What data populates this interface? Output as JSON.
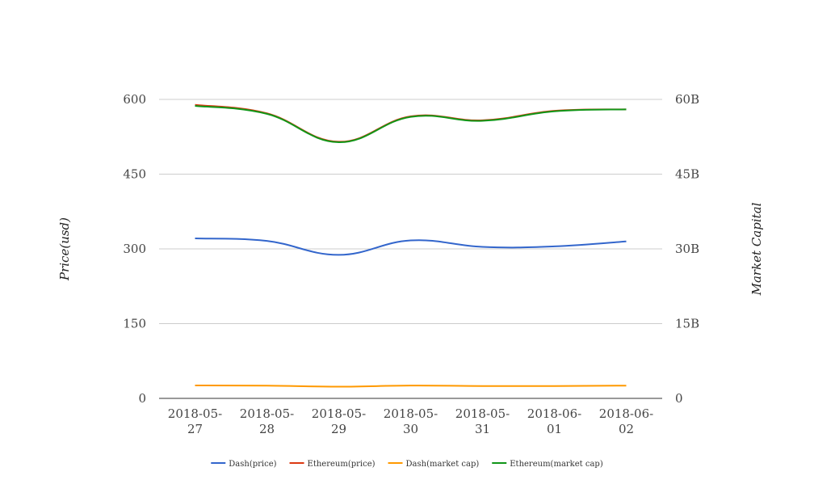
{
  "chart_data": {
    "type": "line",
    "categories": [
      "2018-05-27",
      "2018-05-28",
      "2018-05-29",
      "2018-05-30",
      "2018-05-31",
      "2018-06-01",
      "2018-06-02"
    ],
    "x_tick_labels": [
      [
        "2018-05-",
        "27"
      ],
      [
        "2018-05-",
        "28"
      ],
      [
        "2018-05-",
        "29"
      ],
      [
        "2018-05-",
        "30"
      ],
      [
        "2018-05-",
        "31"
      ],
      [
        "2018-06-",
        "01"
      ],
      [
        "2018-06-",
        "02"
      ]
    ],
    "ylabel_left": "Price(usd)",
    "ylabel_right": "Market Capital",
    "ylim_left": [
      0,
      600
    ],
    "ylim_right": [
      0,
      60000000000
    ],
    "yticks_left": [
      "0",
      "150",
      "300",
      "450",
      "600"
    ],
    "yticks_right": [
      "0",
      "15B",
      "30B",
      "45B",
      "60B"
    ],
    "grid": true,
    "legend_position": "bottom",
    "series": [
      {
        "name": "Dash(price)",
        "axis": "left",
        "color": "#3366cc",
        "values": [
          321,
          316,
          288,
          317,
          304,
          305,
          315
        ]
      },
      {
        "name": "Ethereum(price)",
        "axis": "left",
        "color": "#dc3912",
        "values": [
          589,
          572,
          515,
          566,
          558,
          577,
          580
        ]
      },
      {
        "name": "Dash(market cap)",
        "axis": "right",
        "color": "#ff9900",
        "values": [
          2600000000,
          2550000000,
          2350000000,
          2570000000,
          2480000000,
          2480000000,
          2560000000
        ]
      },
      {
        "name": "Ethereum(market cap)",
        "axis": "right",
        "color": "#109618",
        "values": [
          58700000000,
          57100000000,
          51400000000,
          56500000000,
          55700000000,
          57600000000,
          58000000000
        ]
      }
    ]
  }
}
